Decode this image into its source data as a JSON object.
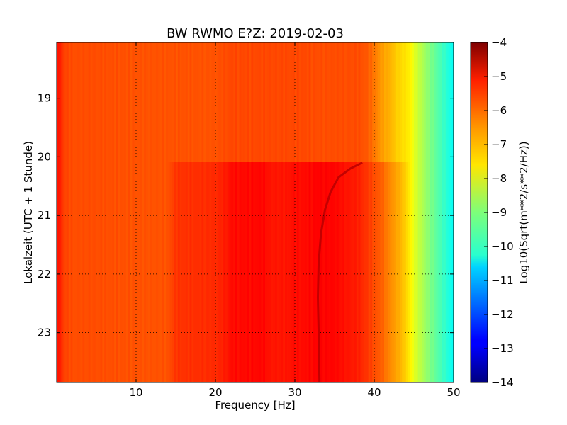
{
  "chart_data": {
    "type": "heatmap",
    "title": "BW RWMO E?Z: 2019-02-03",
    "xlabel": "Frequency [Hz]",
    "ylabel": "Lokalzeit (UTC + 1 Stunde)",
    "xlim": [
      0,
      50
    ],
    "ylim": [
      23.85,
      18.05
    ],
    "x_ticks": [
      10,
      20,
      30,
      40,
      50
    ],
    "y_ticks": [
      19,
      20,
      21,
      22,
      23
    ],
    "grid": true,
    "colormap": "jet",
    "colorbar": {
      "label": "Log10(Sqrt(m**2/s**2/Hz))",
      "range": [
        -14,
        -4
      ],
      "ticks": [
        -4,
        -5,
        -6,
        -7,
        -8,
        -9,
        -10,
        -11,
        -12,
        -13,
        -14
      ]
    },
    "level_vs_frequency": {
      "frequency_hz": [
        0,
        0.5,
        1,
        2,
        5,
        10,
        14,
        15,
        20,
        21,
        22,
        26,
        27,
        29,
        30,
        31,
        33,
        35,
        38,
        39,
        40,
        41,
        42,
        43,
        44,
        44.5,
        45,
        46,
        47,
        48,
        49,
        50
      ],
      "before_20h": [
        -5.3,
        -5.6,
        -5.9,
        -6.0,
        -6.0,
        -6.05,
        -6.05,
        -6.05,
        -6.05,
        -6.0,
        -5.95,
        -5.95,
        -5.95,
        -5.95,
        -5.95,
        -5.95,
        -6.0,
        -6.0,
        -6.0,
        -6.1,
        -6.4,
        -6.8,
        -7.0,
        -7.3,
        -7.5,
        -7.6,
        -8.0,
        -8.5,
        -9.0,
        -9.4,
        -9.8,
        -10.2
      ],
      "after_20h": [
        -5.3,
        -5.6,
        -5.9,
        -6.0,
        -6.0,
        -6.05,
        -6.05,
        -5.75,
        -5.65,
        -5.55,
        -5.35,
        -5.3,
        -5.45,
        -5.45,
        -5.35,
        -5.35,
        -5.25,
        -5.3,
        -5.55,
        -5.75,
        -6.0,
        -6.2,
        -6.6,
        -6.9,
        -7.3,
        -7.6,
        -8.0,
        -8.5,
        -9.0,
        -9.4,
        -9.8,
        -10.2
      ]
    },
    "level_change_time": 20.08,
    "tremor_line": {
      "time": [
        20.1,
        20.2,
        20.35,
        20.6,
        20.9,
        21.3,
        21.8,
        22.4,
        23.0,
        23.85
      ],
      "frequency_hz": [
        38.5,
        37.0,
        35.5,
        34.5,
        33.8,
        33.3,
        33.0,
        32.9,
        33.0,
        33.1
      ]
    },
    "colors": {
      "plot_frame": "#000000",
      "grid": "#000000"
    }
  }
}
